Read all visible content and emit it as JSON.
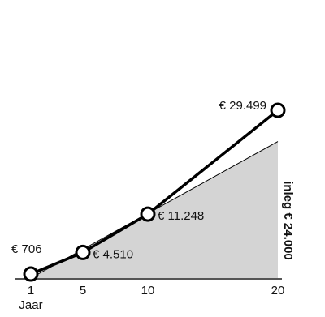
{
  "chart_data": {
    "type": "line",
    "xlabel": "Jaar",
    "x_ticks": [
      1,
      5,
      10,
      20
    ],
    "xlim": [
      1,
      20
    ],
    "ylim": [
      0,
      29499
    ],
    "series": [
      {
        "name": "",
        "points": [
          {
            "x": 1,
            "y": 706,
            "label": "€ 706"
          },
          {
            "x": 5,
            "y": 4510,
            "label": "€ 4.510"
          },
          {
            "x": 10,
            "y": 11248,
            "label": "€ 11.248"
          },
          {
            "x": 20,
            "y": 29499,
            "label": "€ 29.499"
          }
        ]
      }
    ],
    "deposit": {
      "label": "inleg € 24.000",
      "start": {
        "x": 1,
        "y": 0
      },
      "end": {
        "x": 20,
        "y": 24000
      }
    },
    "colors": {
      "area": "#d4d4d4",
      "line": "#000000",
      "marker_fill": "#ffffff"
    }
  }
}
